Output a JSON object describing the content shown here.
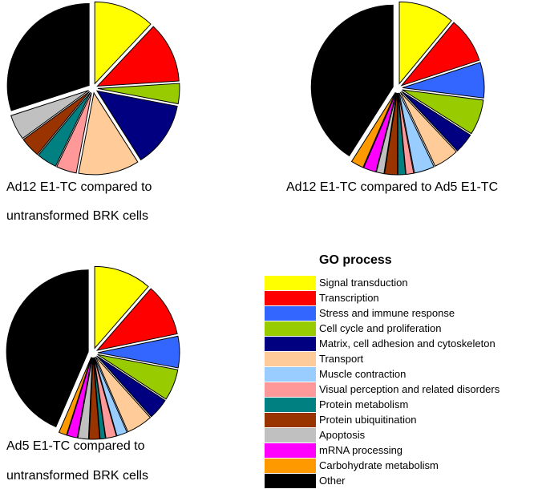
{
  "legend": {
    "title": "GO process",
    "items": [
      {
        "label": "Signal transduction",
        "color": "#ffff00"
      },
      {
        "label": "Transcription",
        "color": "#ff0000"
      },
      {
        "label": "Stress and immune response",
        "color": "#3366ff"
      },
      {
        "label": "Cell cycle and proliferation",
        "color": "#99cc00"
      },
      {
        "label": "Matrix, cell adhesion and cytoskeleton",
        "color": "#000080"
      },
      {
        "label": "Transport",
        "color": "#ffcc99"
      },
      {
        "label": "Muscle contraction",
        "color": "#99ccff"
      },
      {
        "label": "Visual perception and related disorders",
        "color": "#ff9999"
      },
      {
        "label": "Protein metabolism",
        "color": "#008080"
      },
      {
        "label": "Protein ubiquitination",
        "color": "#993300"
      },
      {
        "label": "Apoptosis",
        "color": "#c0c0c0"
      },
      {
        "label": "mRNA processing",
        "color": "#ff00ff"
      },
      {
        "label": "Carbohydrate metabolism",
        "color": "#ff9900"
      },
      {
        "label": "Other",
        "color": "#000000"
      }
    ]
  },
  "chart_data": [
    {
      "type": "pie",
      "caption": [
        "Ad12 E1-TC compared to",
        "untransformed BRK cells"
      ],
      "slices": [
        {
          "label": "Signal transduction",
          "value": 12
        },
        {
          "label": "Transcription",
          "value": 12
        },
        {
          "label": "Cell cycle and proliferation",
          "value": 4
        },
        {
          "label": "Matrix, cell adhesion and cytoskeleton",
          "value": 13
        },
        {
          "label": "Transport",
          "value": 12
        },
        {
          "label": "Visual perception and related disorders",
          "value": 4
        },
        {
          "label": "Protein metabolism",
          "value": 4
        },
        {
          "label": "Protein ubiquitination",
          "value": 4
        },
        {
          "label": "Apoptosis",
          "value": 5
        },
        {
          "label": "Other",
          "value": 30
        }
      ]
    },
    {
      "type": "pie",
      "caption": [
        "Ad12 E1-TC compared to Ad5 E1-TC"
      ],
      "slices": [
        {
          "label": "Signal transduction",
          "value": 11
        },
        {
          "label": "Transcription",
          "value": 9
        },
        {
          "label": "Stress and immune response",
          "value": 7
        },
        {
          "label": "Cell cycle and proliferation",
          "value": 7
        },
        {
          "label": "Matrix, cell adhesion and cytoskeleton",
          "value": 4
        },
        {
          "label": "Transport",
          "value": 5
        },
        {
          "label": "Muscle contraction",
          "value": 4
        },
        {
          "label": "Visual perception and related disorders",
          "value": 1.5
        },
        {
          "label": "Protein metabolism",
          "value": 1.5
        },
        {
          "label": "Protein ubiquitination",
          "value": 2.5
        },
        {
          "label": "Apoptosis",
          "value": 1.5
        },
        {
          "label": "mRNA processing",
          "value": 2.5
        },
        {
          "label": "Carbohydrate metabolism",
          "value": 2.5
        },
        {
          "label": "Other",
          "value": 41
        }
      ]
    },
    {
      "type": "pie",
      "caption": [
        "Ad5 E1-TC compared to",
        "untransformed BRK cells"
      ],
      "slices": [
        {
          "label": "Signal transduction",
          "value": 11
        },
        {
          "label": "Transcription",
          "value": 10
        },
        {
          "label": "Stress and immune response",
          "value": 6
        },
        {
          "label": "Cell cycle and proliferation",
          "value": 6
        },
        {
          "label": "Matrix, cell adhesion and cytoskeleton",
          "value": 4
        },
        {
          "label": "Transport",
          "value": 5
        },
        {
          "label": "Muscle contraction",
          "value": 2
        },
        {
          "label": "Visual perception and related disorders",
          "value": 2
        },
        {
          "label": "Protein metabolism",
          "value": 1
        },
        {
          "label": "Protein ubiquitination",
          "value": 2
        },
        {
          "label": "Apoptosis",
          "value": 2
        },
        {
          "label": "mRNA processing",
          "value": 2
        },
        {
          "label": "Carbohydrate metabolism",
          "value": 1.5
        },
        {
          "label": "Other",
          "value": 42
        }
      ]
    }
  ]
}
